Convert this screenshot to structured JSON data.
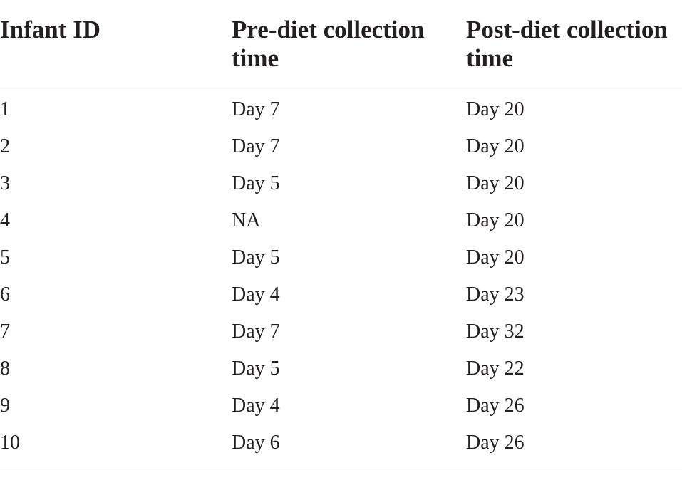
{
  "table": {
    "headers": {
      "col1": "Infant ID",
      "col2_line1": "Pre-diet collection",
      "col2_line2": "time",
      "col3_line1": "Post-diet collection",
      "col3_line2": "time"
    },
    "rows": [
      {
        "id": "1",
        "pre": "Day 7",
        "post": "Day 20"
      },
      {
        "id": "2",
        "pre": "Day 7",
        "post": "Day 20"
      },
      {
        "id": "3",
        "pre": "Day 5",
        "post": "Day 20"
      },
      {
        "id": "4",
        "pre": "NA",
        "post": "Day 20"
      },
      {
        "id": "5",
        "pre": "Day 5",
        "post": "Day 20"
      },
      {
        "id": "6",
        "pre": "Day 4",
        "post": "Day 23"
      },
      {
        "id": "7",
        "pre": "Day 7",
        "post": "Day 32"
      },
      {
        "id": "8",
        "pre": "Day 5",
        "post": "Day 22"
      },
      {
        "id": "9",
        "pre": "Day 4",
        "post": "Day 26"
      },
      {
        "id": "10",
        "pre": "Day 6",
        "post": "Day 26"
      }
    ]
  }
}
